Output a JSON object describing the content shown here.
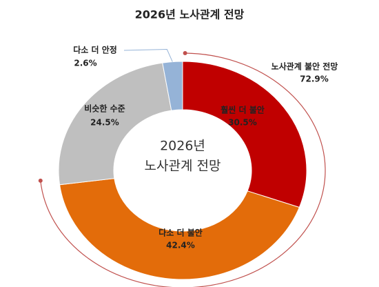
{
  "chart_data": {
    "type": "donut",
    "title": "2026년 노사관계 전망",
    "center_text": [
      "2026년",
      "노사관계 전망"
    ],
    "categories": [
      "훨씬 더 불안",
      "다소 더 불안",
      "비슷한 수준",
      "다소 더 안정"
    ],
    "values": [
      30.5,
      42.4,
      24.5,
      2.6
    ],
    "value_labels": [
      "30.5%",
      "42.4%",
      "24.5%",
      "2.6%"
    ],
    "colors": [
      "#c00000",
      "#e36c0a",
      "#bfbfbf",
      "#95b3d7"
    ],
    "annotation": {
      "text": "노사관계 불안 전망",
      "value": 72.9,
      "value_label": "72.9%",
      "color": "#c0504d"
    }
  }
}
